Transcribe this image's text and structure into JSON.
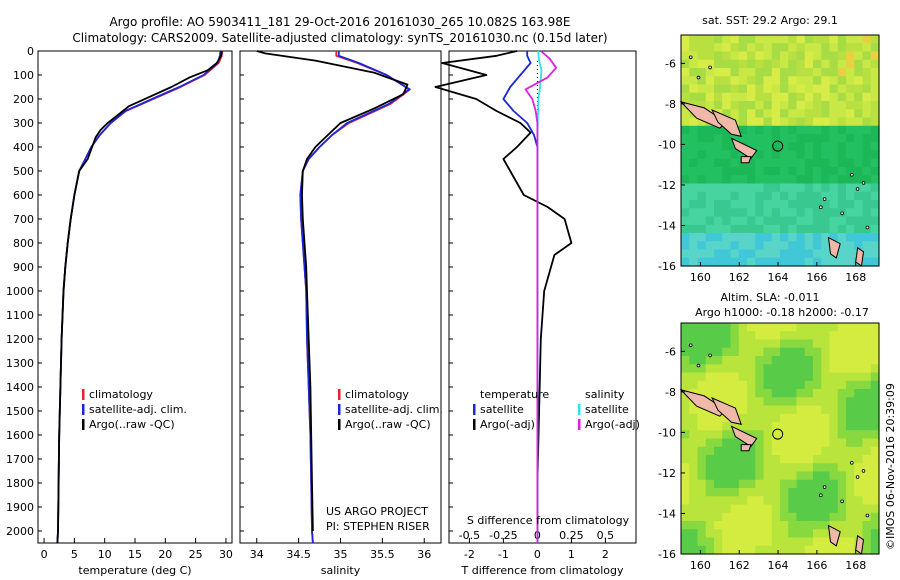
{
  "header": {
    "line1": "Argo profile: AO 5903411_181 29-Oct-2016 20161030_265 10.082S 163.98E",
    "line2": "Climatology: CARS2009. Satellite-adjusted climatology: synTS_20161030.nc (0.15d later)"
  },
  "colors": {
    "climatology": "#e8202a",
    "satellite": "#1a28d8",
    "argo": "#000000",
    "sat_salinity": "#33e0e8",
    "argo_salinity": "#e020e0"
  },
  "chart_data": [
    {
      "id": "temperature",
      "type": "line",
      "xlabel": "temperature (deg C)",
      "ylabel": "",
      "xlim": [
        -1,
        31
      ],
      "ylim": [
        2050,
        0
      ],
      "xticks": [
        0,
        5,
        10,
        15,
        20,
        25,
        30
      ],
      "yticks": [
        0,
        100,
        200,
        300,
        400,
        500,
        600,
        700,
        800,
        900,
        1000,
        1100,
        1200,
        1300,
        1400,
        1500,
        1600,
        1700,
        1800,
        1900,
        2000
      ],
      "legend": [
        "climatology",
        "satellite-adj. clim.",
        "Argo(..raw -QC)"
      ],
      "legend_position": "lower-center",
      "series": [
        {
          "name": "climatology",
          "x": [
            29.4,
            29.3,
            28.8,
            26.5,
            22.5,
            18,
            13.5,
            11,
            9.2,
            7.8,
            6.8,
            5.8,
            5,
            4.4,
            3.9,
            3.5,
            3.2,
            2.9,
            2.7,
            2.5,
            2.4,
            2.3,
            2.2
          ],
          "y": [
            0,
            20,
            50,
            100,
            150,
            200,
            250,
            300,
            350,
            400,
            450,
            500,
            600,
            700,
            800,
            900,
            1000,
            1200,
            1400,
            1600,
            1800,
            2000,
            2050
          ]
        },
        {
          "name": "satellite-adj. clim.",
          "x": [
            29.1,
            29.0,
            28.6,
            26.3,
            22.3,
            17.8,
            13.4,
            11,
            9.2,
            7.8,
            6.8,
            5.8,
            5,
            4.4,
            3.9,
            3.5,
            3.2,
            2.9,
            2.7,
            2.5,
            2.4,
            2.3,
            2.2
          ],
          "y": [
            0,
            20,
            50,
            100,
            150,
            200,
            250,
            300,
            350,
            400,
            450,
            500,
            600,
            700,
            800,
            900,
            1000,
            1200,
            1400,
            1600,
            1800,
            2000,
            2050
          ]
        },
        {
          "name": "Argo(..raw -QC)",
          "x": [
            29.3,
            29.2,
            28.5,
            27,
            24,
            21,
            17.5,
            14,
            12,
            10.5,
            9.3,
            8.5,
            7.2,
            5.8,
            5,
            4.4,
            3.9,
            3.5,
            3.2,
            2.9,
            2.7,
            2.5,
            2.4,
            2.3,
            2.2
          ],
          "y": [
            0,
            20,
            50,
            80,
            110,
            150,
            190,
            230,
            270,
            300,
            330,
            360,
            450,
            500,
            600,
            700,
            800,
            900,
            1000,
            1200,
            1400,
            1600,
            1800,
            2000,
            2050
          ]
        }
      ]
    },
    {
      "id": "salinity",
      "type": "line",
      "xlabel": "salinity",
      "ylabel": "",
      "xlim": [
        33.8,
        36.2
      ],
      "ylim": [
        2050,
        0
      ],
      "xticks": [
        34,
        34.5,
        35,
        35.5,
        36
      ],
      "legend": [
        "climatology",
        "satellite-adj. clim.",
        "Argo(..raw -QC)"
      ],
      "legend_position": "lower-center",
      "annotation": [
        "US ARGO PROJECT",
        "PI: STEPHEN RISER"
      ],
      "series": [
        {
          "name": "climatology",
          "x": [
            34.95,
            34.95,
            35.2,
            35.55,
            35.83,
            35.6,
            35.1,
            34.9,
            34.75,
            34.62,
            34.55,
            34.52,
            34.53,
            34.55,
            34.57,
            34.59,
            34.6,
            34.62,
            34.64,
            34.65,
            34.66,
            34.67
          ],
          "y": [
            0,
            20,
            50,
            100,
            160,
            220,
            300,
            350,
            400,
            450,
            500,
            600,
            700,
            800,
            900,
            1000,
            1200,
            1400,
            1600,
            1800,
            2000,
            2050
          ]
        },
        {
          "name": "satellite-adj. clim.",
          "x": [
            34.98,
            34.98,
            35.22,
            35.55,
            35.82,
            35.58,
            35.08,
            34.9,
            34.75,
            34.62,
            34.55,
            34.52,
            34.53,
            34.55,
            34.57,
            34.59,
            34.6,
            34.62,
            34.64,
            34.65,
            34.66,
            34.67
          ],
          "y": [
            0,
            20,
            50,
            100,
            160,
            220,
            300,
            350,
            400,
            450,
            500,
            600,
            700,
            800,
            900,
            1000,
            1200,
            1400,
            1600,
            1800,
            2000,
            2050
          ]
        },
        {
          "name": "Argo(..raw -QC)",
          "x": [
            34.0,
            34.1,
            34.7,
            35.4,
            35.8,
            35.75,
            35.4,
            35.0,
            34.85,
            34.7,
            34.6,
            34.55,
            34.54,
            34.55,
            34.57,
            34.59,
            34.6,
            34.62,
            34.64,
            34.65,
            34.66,
            34.67
          ],
          "y": [
            0,
            10,
            40,
            90,
            140,
            180,
            240,
            300,
            350,
            400,
            450,
            500,
            600,
            700,
            800,
            900,
            1000,
            1200,
            1400,
            1600,
            1800,
            2000
          ]
        }
      ]
    },
    {
      "id": "difference",
      "type": "line",
      "xlabel": "T difference from climatology",
      "x2label": "S difference from climatology",
      "xlim": [
        -2.6,
        2.9
      ],
      "ylim": [
        2050,
        0
      ],
      "xticks": [
        -2,
        -1,
        0,
        1,
        2
      ],
      "x2ticks": [
        -0.5,
        -0.25,
        0,
        0.25,
        0.5
      ],
      "legend": [
        "temperature",
        "satellite",
        "Argo(-adj)",
        "salinity",
        "satellite",
        "Argo(-adj)"
      ],
      "series": [
        {
          "name": "T satellite",
          "x": [
            -0.3,
            -0.3,
            -0.2,
            -0.5,
            -0.8,
            -1.0,
            -0.7,
            -0.3,
            -0.1,
            0,
            0,
            0
          ],
          "y": [
            0,
            20,
            50,
            100,
            150,
            200,
            250,
            300,
            350,
            400,
            600,
            2050
          ]
        },
        {
          "name": "T Argo(-adj)",
          "x": [
            -0.6,
            -1.2,
            -2.8,
            -1.5,
            -3.0,
            -1.8,
            -1.2,
            -0.5,
            -0.2,
            -0.6,
            -1.0,
            -0.8,
            -0.4,
            0.3,
            0.8,
            1.0,
            0.5,
            0.2,
            0.1,
            0.05,
            0,
            0
          ],
          "y": [
            0,
            20,
            50,
            100,
            150,
            200,
            250,
            300,
            340,
            400,
            450,
            500,
            600,
            650,
            700,
            800,
            850,
            1000,
            1200,
            1500,
            1800,
            2050
          ]
        },
        {
          "name": "S satellite",
          "x": [
            0.02,
            0.05,
            0.12,
            0.08,
            0.03,
            0.02,
            0.01,
            0,
            0,
            0
          ],
          "y": [
            0,
            40,
            80,
            150,
            200,
            250,
            300,
            400,
            600,
            2050
          ]
        },
        {
          "name": "S Argo(-adj)",
          "x": [
            0.1,
            0.35,
            0.55,
            0.3,
            -0.35,
            -0.15,
            -0.05,
            0,
            0,
            0
          ],
          "y": [
            0,
            30,
            70,
            110,
            160,
            200,
            250,
            300,
            400,
            2050
          ]
        }
      ]
    },
    {
      "id": "sst-map",
      "type": "heatmap",
      "title": "sat. SST: 29.2  Argo: 29.1",
      "xlim": [
        159,
        169.2
      ],
      "ylim": [
        -16,
        -4.6
      ],
      "xticks": [
        160,
        162,
        164,
        166,
        168
      ],
      "yticks": [
        -6,
        -8,
        -10,
        -12,
        -14,
        -16
      ],
      "profile_location": [
        163.98,
        -10.082
      ]
    },
    {
      "id": "sla-map",
      "type": "heatmap",
      "title": "Altim. SLA: -0.011",
      "subtitle": "Argo h1000: -0.18 h2000: -0.17",
      "xlim": [
        159,
        169.2
      ],
      "ylim": [
        -16,
        -4.6
      ],
      "xticks": [
        160,
        162,
        164,
        166,
        168
      ],
      "yticks": [
        -6,
        -8,
        -10,
        -12,
        -14,
        -16
      ],
      "profile_location": [
        163.98,
        -10.082
      ]
    }
  ],
  "footer": {
    "stamp": "©IMOS 06-Nov-2016 20:39:09"
  }
}
